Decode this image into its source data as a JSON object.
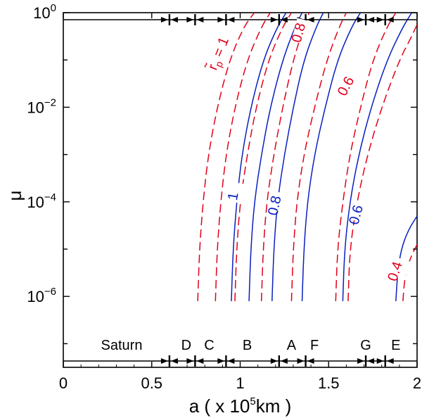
{
  "chart_data": {
    "type": "line",
    "title": "",
    "xlabel_parts": {
      "prefix": "a ( x 10",
      "sup": "5",
      "suffix": "km )"
    },
    "ylabel": "μ",
    "xlim": [
      0,
      2
    ],
    "ylim_log10": [
      -7.5,
      0
    ],
    "y_scale": "log",
    "grid": false,
    "x_ticks": [
      {
        "value": 0,
        "label": "0"
      },
      {
        "value": 0.5,
        "label": "0.5"
      },
      {
        "value": 1,
        "label": "1"
      },
      {
        "value": 1.5,
        "label": "1.5"
      },
      {
        "value": 2,
        "label": "2"
      }
    ],
    "y_ticks": [
      {
        "exp": 0,
        "base": "10",
        "sup": "0"
      },
      {
        "exp": -2,
        "base": "10",
        "sup": "−2"
      },
      {
        "exp": -4,
        "base": "10",
        "sup": "−4"
      },
      {
        "exp": -6,
        "base": "10",
        "sup": "−6"
      }
    ],
    "region_boundaries": [
      0.6,
      0.745,
      0.92,
      1.22,
      1.37,
      1.71,
      1.82
    ],
    "region_labels": [
      {
        "label": "Saturn",
        "x": 0.33
      },
      {
        "label": "D",
        "x": 0.695
      },
      {
        "label": "C",
        "x": 0.825
      },
      {
        "label": "B",
        "x": 1.04
      },
      {
        "label": "A",
        "x": 1.29
      },
      {
        "label": "F",
        "x": 1.42
      },
      {
        "label": "G",
        "x": 1.71
      },
      {
        "label": "E",
        "x": 1.88
      }
    ],
    "series": [
      {
        "style": "dashed",
        "color": "#e0001a",
        "points": [
          [
            0.76,
            -6.1
          ],
          [
            0.77,
            -5.0
          ],
          [
            0.79,
            -4.0
          ],
          [
            0.82,
            -3.0
          ],
          [
            0.87,
            -2.0
          ],
          [
            0.94,
            -1.0
          ],
          [
            1.02,
            -0.3
          ],
          [
            1.08,
            0
          ]
        ]
      },
      {
        "style": "dashed",
        "color": "#e0001a",
        "points": [
          [
            0.86,
            -6.1
          ],
          [
            0.87,
            -5.0
          ],
          [
            0.89,
            -4.0
          ],
          [
            0.92,
            -3.0
          ],
          [
            0.97,
            -2.0
          ],
          [
            1.04,
            -1.0
          ],
          [
            1.12,
            -0.3
          ],
          [
            1.17,
            0
          ]
        ]
      },
      {
        "style": "solid",
        "color": "#0a1fbf",
        "points": [
          [
            0.95,
            -6.1
          ],
          [
            0.96,
            -5.0
          ],
          [
            0.98,
            -4.0
          ],
          [
            1.01,
            -3.0
          ],
          [
            1.06,
            -2.0
          ],
          [
            1.13,
            -1.0
          ],
          [
            1.21,
            -0.3
          ],
          [
            1.26,
            0
          ]
        ]
      },
      {
        "style": "dashed",
        "color": "#e0001a",
        "points": [
          [
            0.97,
            -6.1
          ],
          [
            0.98,
            -5.0
          ],
          [
            1.0,
            -4.0
          ],
          [
            1.04,
            -3.0
          ],
          [
            1.09,
            -2.0
          ],
          [
            1.16,
            -1.0
          ],
          [
            1.24,
            -0.3
          ],
          [
            1.29,
            0
          ]
        ]
      },
      {
        "style": "solid",
        "color": "#0a1fbf",
        "points": [
          [
            1.05,
            -6.1
          ],
          [
            1.06,
            -5.0
          ],
          [
            1.08,
            -4.0
          ],
          [
            1.12,
            -3.0
          ],
          [
            1.17,
            -2.0
          ],
          [
            1.24,
            -1.0
          ],
          [
            1.31,
            -0.3
          ],
          [
            1.35,
            0
          ]
        ]
      },
      {
        "style": "dashed",
        "color": "#e0001a",
        "points": [
          [
            1.12,
            -6.1
          ],
          [
            1.13,
            -5.0
          ],
          [
            1.15,
            -4.0
          ],
          [
            1.19,
            -3.0
          ],
          [
            1.24,
            -2.0
          ],
          [
            1.3,
            -1.0
          ],
          [
            1.36,
            -0.3
          ],
          [
            1.39,
            0
          ]
        ]
      },
      {
        "style": "solid",
        "color": "#0a1fbf",
        "points": [
          [
            1.18,
            -6.1
          ],
          [
            1.19,
            -5.0
          ],
          [
            1.21,
            -4.0
          ],
          [
            1.25,
            -3.0
          ],
          [
            1.3,
            -2.0
          ],
          [
            1.36,
            -1.0
          ],
          [
            1.43,
            -0.3
          ],
          [
            1.47,
            0
          ]
        ]
      },
      {
        "style": "dashed",
        "color": "#e0001a",
        "points": [
          [
            1.29,
            -6.1
          ],
          [
            1.3,
            -5.0
          ],
          [
            1.32,
            -4.0
          ],
          [
            1.36,
            -3.0
          ],
          [
            1.42,
            -2.0
          ],
          [
            1.49,
            -1.0
          ],
          [
            1.56,
            -0.3
          ],
          [
            1.6,
            0
          ]
        ]
      },
      {
        "style": "solid",
        "color": "#0a1fbf",
        "points": [
          [
            1.35,
            -6.1
          ],
          [
            1.36,
            -5.0
          ],
          [
            1.38,
            -4.0
          ],
          [
            1.42,
            -3.0
          ],
          [
            1.48,
            -2.0
          ],
          [
            1.55,
            -1.0
          ],
          [
            1.63,
            -0.3
          ],
          [
            1.68,
            0
          ]
        ]
      },
      {
        "style": "dashed",
        "color": "#e0001a",
        "points": [
          [
            1.54,
            -6.1
          ],
          [
            1.55,
            -5.0
          ],
          [
            1.58,
            -4.0
          ],
          [
            1.62,
            -3.0
          ],
          [
            1.68,
            -2.0
          ],
          [
            1.75,
            -1.0
          ],
          [
            1.83,
            -0.3
          ],
          [
            1.88,
            0
          ]
        ]
      },
      {
        "style": "solid",
        "color": "#0a1fbf",
        "points": [
          [
            1.58,
            -6.1
          ],
          [
            1.59,
            -5.0
          ],
          [
            1.62,
            -4.0
          ],
          [
            1.67,
            -3.0
          ],
          [
            1.74,
            -2.0
          ],
          [
            1.83,
            -1.0
          ],
          [
            1.92,
            -0.3
          ],
          [
            1.97,
            0
          ]
        ]
      },
      {
        "style": "dashed",
        "color": "#e0001a",
        "points": [
          [
            1.61,
            -6.1
          ],
          [
            1.62,
            -5.0
          ],
          [
            1.66,
            -4.0
          ],
          [
            1.72,
            -3.0
          ],
          [
            1.8,
            -2.0
          ],
          [
            1.9,
            -1.0
          ],
          [
            1.97,
            -0.5
          ],
          [
            2.0,
            -0.25
          ]
        ]
      },
      {
        "style": "solid",
        "color": "#0a1fbf",
        "points": [
          [
            1.88,
            -6.1
          ],
          [
            1.89,
            -5.5
          ],
          [
            1.91,
            -5.0
          ],
          [
            1.95,
            -4.6
          ],
          [
            2.0,
            -4.3
          ]
        ]
      },
      {
        "style": "dashed",
        "color": "#e0001a",
        "points": [
          [
            1.92,
            -6.1
          ],
          [
            1.93,
            -5.6
          ],
          [
            1.96,
            -5.2
          ],
          [
            2.0,
            -4.9
          ]
        ]
      }
    ],
    "contour_labels": [
      {
        "text": "r̃",
        "sub": "p",
        "suffix": " = 1",
        "x": 0.9,
        "y": -0.9,
        "angle": -68,
        "color": "red"
      },
      {
        "text": "0.8",
        "x": 1.355,
        "y": -0.45,
        "angle": -75,
        "color": "red"
      },
      {
        "text": "0.6",
        "x": 1.62,
        "y": -1.6,
        "angle": -62,
        "color": "red"
      },
      {
        "text": "0.4",
        "x": 1.9,
        "y": -5.5,
        "angle": -72,
        "color": "red"
      },
      {
        "text": "1",
        "x": 0.985,
        "y": -3.9,
        "angle": -80,
        "color": "blue"
      },
      {
        "text": "0.8",
        "x": 1.22,
        "y": -4.1,
        "angle": -78,
        "color": "blue"
      },
      {
        "text": "0.6",
        "x": 1.68,
        "y": -4.3,
        "angle": -75,
        "color": "blue"
      }
    ]
  }
}
